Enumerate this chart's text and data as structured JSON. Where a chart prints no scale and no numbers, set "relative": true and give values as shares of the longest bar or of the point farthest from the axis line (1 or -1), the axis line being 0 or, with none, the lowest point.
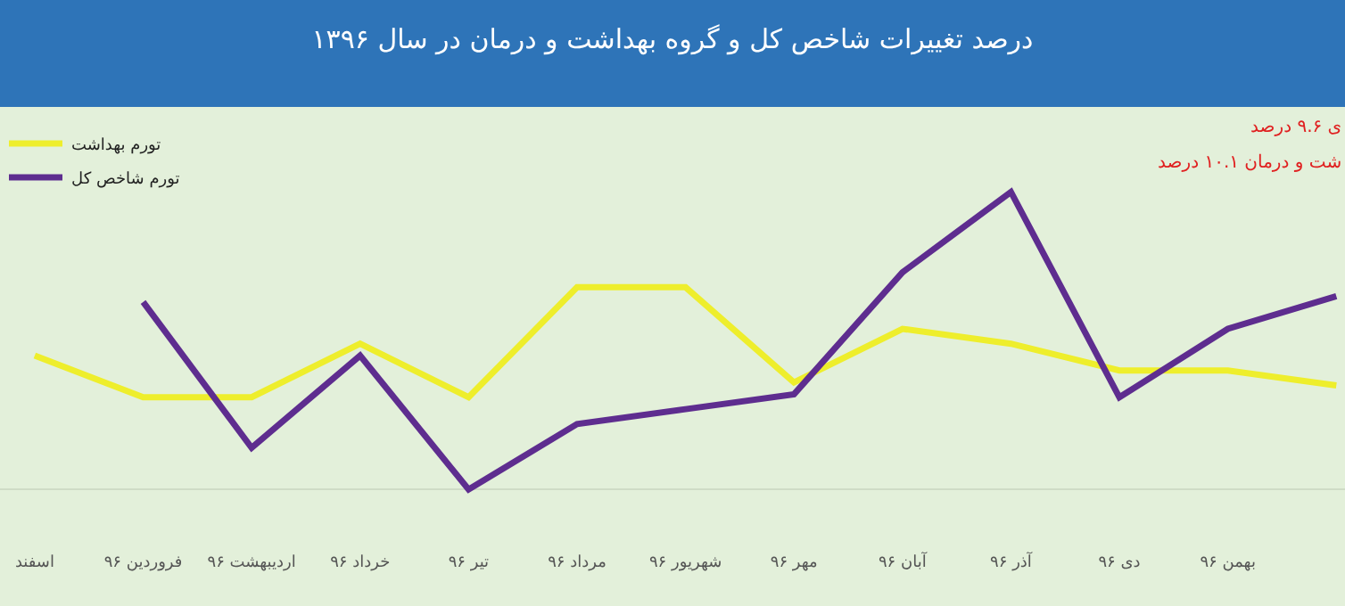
{
  "chart_data": {
    "type": "line",
    "title": "درصد تغییرات شاخص کل و گروه بهداشت و درمان در سال ۱۳۹۶",
    "relative": true,
    "legend": "top left",
    "marker": "none",
    "line_style": "solid",
    "categories": [
      "اسفند",
      "فروردین ۹۶",
      "اردیبهشت ۹۶",
      "خرداد ۹۶",
      "تیر ۹۶",
      "مرداد ۹۶",
      "شهریور ۹۶",
      "مهر ۹۶",
      "آبان ۹۶",
      "آذر ۹۶",
      "دی ۹۶",
      "بهمن ۹۶",
      null
    ],
    "series": [
      {
        "name": "تورم بهداشت",
        "color": "#eeee2c",
        "values": [
          0.45,
          0.31,
          0.31,
          0.49,
          0.31,
          0.68,
          0.68,
          0.36,
          0.54,
          0.49,
          0.4,
          0.4,
          0.35
        ]
      },
      {
        "name": "تورم شاخص کل",
        "color": "#5e2d8f",
        "values": [
          null,
          0.63,
          0.14,
          0.45,
          0,
          0.22,
          0.27,
          0.32,
          0.73,
          1,
          0.31,
          0.54,
          0.65
        ]
      }
    ],
    "annotations": [
      "ی ۹.۶ درصد",
      "شت و درمان ۱۰.۱ درصد"
    ]
  }
}
